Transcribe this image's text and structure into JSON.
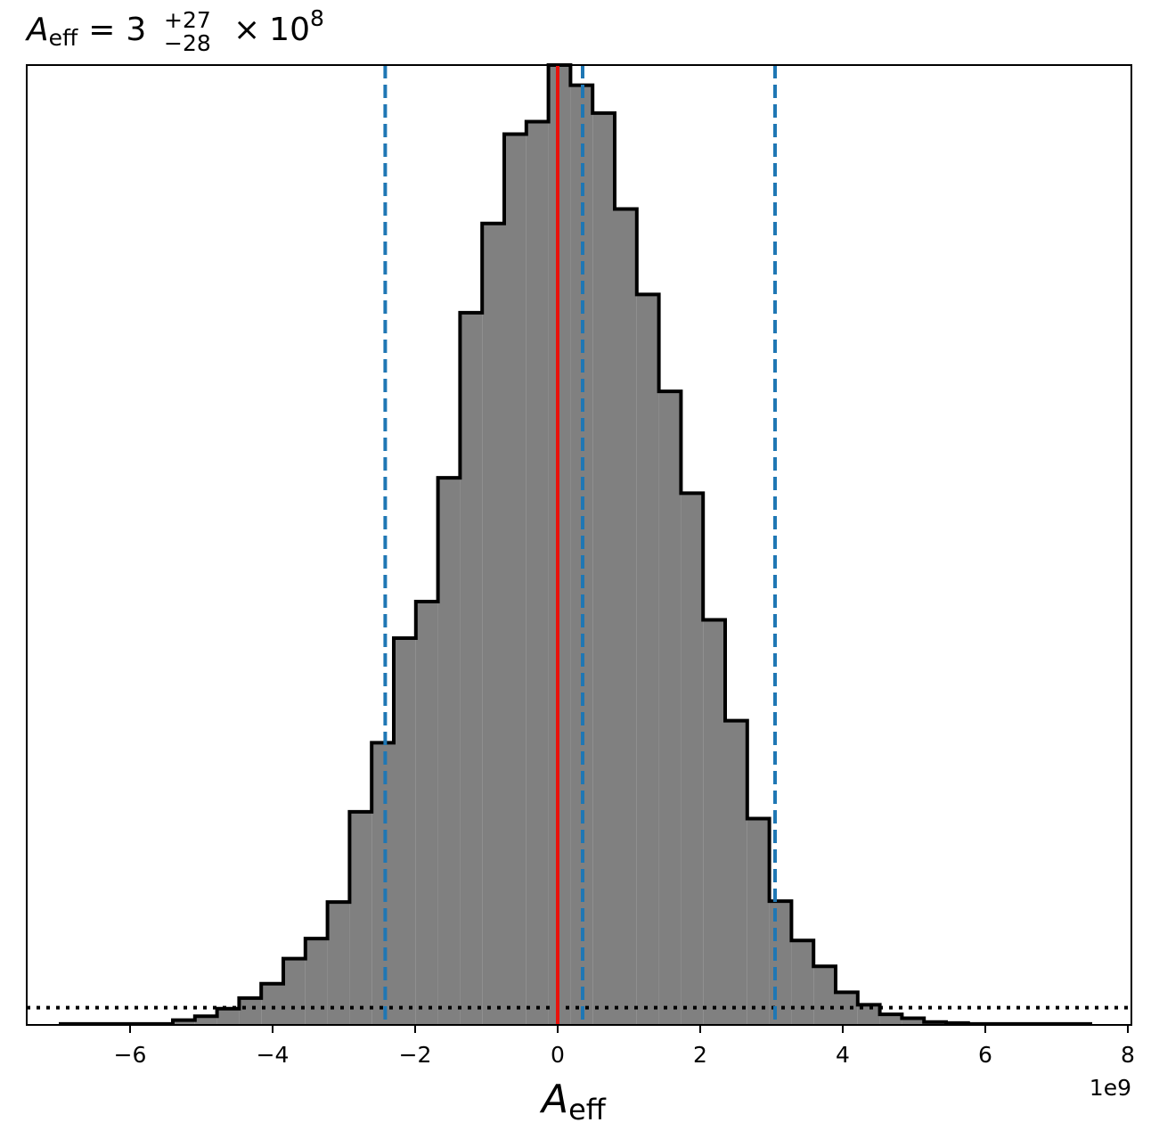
{
  "chart_data": {
    "type": "bar",
    "histogram": true,
    "title": {
      "symbol": "A",
      "subscript": "eff",
      "equals": "=",
      "mantissa": "3",
      "upper": "+27",
      "lower": "−28",
      "times": "×",
      "base": "10",
      "exponent": "8"
    },
    "xlabel": {
      "symbol": "A",
      "subscript": "eff"
    },
    "x_offset_label": "1e9",
    "xlim": [
      -7.45,
      8.05
    ],
    "ylim": [
      0,
      1.0
    ],
    "x_ticks": [
      -6,
      -4,
      -2,
      0,
      2,
      4,
      6,
      8
    ],
    "x_tick_labels": [
      "−6",
      "−4",
      "−2",
      "0",
      "2",
      "4",
      "6",
      "8"
    ],
    "y_ticks_shown": false,
    "bin_edges": [
      -5.4,
      -5.09,
      -4.78,
      -4.47,
      -4.16,
      -3.85,
      -3.54,
      -3.23,
      -2.92,
      -2.61,
      -2.3,
      -1.99,
      -1.68,
      -1.37,
      -1.06,
      -0.75,
      -0.44,
      -0.13,
      0.18,
      0.49,
      0.8,
      1.11,
      1.42,
      1.73,
      2.04,
      2.35,
      2.66,
      2.97,
      3.28,
      3.59,
      3.9,
      4.21,
      4.52,
      4.83,
      5.14,
      5.45,
      5.76
    ],
    "values": [
      0.005,
      0.009,
      0.017,
      0.028,
      0.043,
      0.069,
      0.09,
      0.128,
      0.222,
      0.294,
      0.403,
      0.441,
      0.57,
      0.742,
      0.835,
      0.928,
      0.941,
      1.0,
      0.979,
      0.95,
      0.85,
      0.761,
      0.66,
      0.554,
      0.422,
      0.317,
      0.215,
      0.129,
      0.088,
      0.061,
      0.034,
      0.021,
      0.011,
      0.007,
      0.003,
      0.002
    ],
    "low_edge_left": -7.0,
    "low_edge_right": 7.5,
    "low_edge_level": 0.001,
    "vertical_lines": [
      {
        "x": -2.42,
        "style": "dashed",
        "color": "#1f77b4"
      },
      {
        "x": 0.35,
        "style": "dashed",
        "color": "#1f77b4"
      },
      {
        "x": 3.05,
        "style": "dashed",
        "color": "#1f77b4"
      },
      {
        "x": 0.0,
        "style": "solid",
        "color": "#e8120c"
      }
    ],
    "horizontal_lines": [
      {
        "y": 0.018,
        "style": "dotted",
        "color": "#000000"
      }
    ],
    "colors": {
      "fill": "#808080",
      "outline": "#000000",
      "quantile": "#1f77b4",
      "truth": "#e8120c"
    },
    "grid": false
  }
}
